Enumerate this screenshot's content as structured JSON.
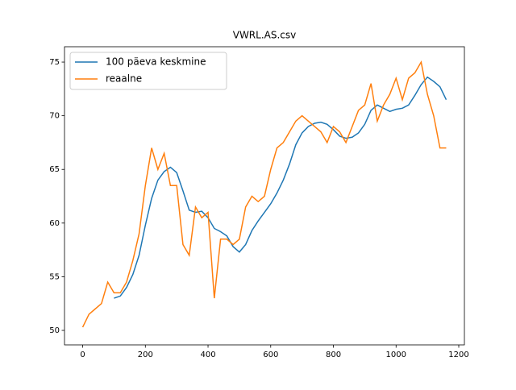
{
  "chart_data": {
    "type": "line",
    "title": "VWRL.AS.csv",
    "x": [
      0,
      20,
      40,
      60,
      80,
      100,
      120,
      140,
      160,
      180,
      200,
      220,
      240,
      260,
      280,
      300,
      320,
      340,
      360,
      380,
      400,
      420,
      440,
      460,
      480,
      500,
      520,
      540,
      560,
      580,
      600,
      620,
      640,
      660,
      680,
      700,
      720,
      740,
      760,
      780,
      800,
      820,
      840,
      860,
      880,
      900,
      920,
      940,
      960,
      980,
      1000,
      1020,
      1040,
      1060,
      1080,
      1100,
      1120,
      1140,
      1160
    ],
    "series": [
      {
        "name": "100 päeva keskmine",
        "color": "#1f77b4",
        "values": [
          null,
          null,
          null,
          null,
          null,
          53,
          53.2,
          54,
          55.2,
          57,
          59.8,
          62.3,
          64,
          64.8,
          65.2,
          64.7,
          63,
          61.2,
          61,
          61.1,
          60.5,
          59.5,
          59.2,
          58.8,
          57.8,
          57.3,
          58,
          59.3,
          60.2,
          61,
          61.8,
          62.8,
          64,
          65.5,
          67.3,
          68.4,
          69,
          69.3,
          69.4,
          69.2,
          68.7,
          68.1,
          67.9,
          68,
          68.4,
          69.2,
          70.5,
          71,
          70.7,
          70.4,
          70.6,
          70.7,
          71,
          71.9,
          72.9,
          73.6,
          73.2,
          72.7,
          71.5
        ]
      },
      {
        "name": "reaalne",
        "color": "#ff7f0e",
        "values": [
          50.3,
          51.5,
          52,
          52.5,
          54.5,
          53.5,
          53.5,
          54.5,
          56.5,
          59,
          63.5,
          67,
          65,
          66.5,
          63.5,
          63.5,
          58,
          57,
          61.5,
          60.5,
          61,
          53,
          58.5,
          58.5,
          58,
          58.5,
          61.5,
          62.5,
          62,
          62.5,
          65,
          67,
          67.5,
          68.5,
          69.5,
          70,
          69.5,
          69,
          68.5,
          67.5,
          69,
          68.5,
          67.5,
          69,
          70.5,
          71,
          73,
          69.5,
          71,
          72,
          73.5,
          71.5,
          73.5,
          74,
          75,
          72,
          70,
          67,
          67
        ]
      }
    ],
    "xlim": [
      -58,
      1218
    ],
    "ylim": [
      48.65,
      76.43
    ],
    "xticks": [
      0,
      200,
      400,
      600,
      800,
      1000,
      1200
    ],
    "yticks": [
      50,
      55,
      60,
      65,
      70,
      75
    ],
    "legend": "upper left"
  }
}
